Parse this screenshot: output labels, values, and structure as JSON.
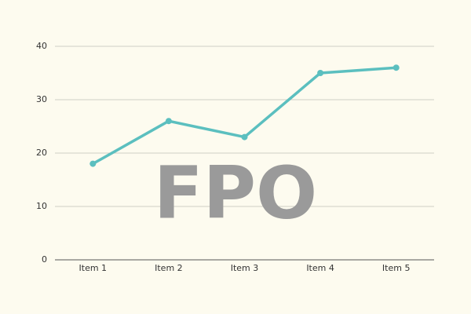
{
  "chart_data": {
    "type": "line",
    "categories": [
      "Item 1",
      "Item 2",
      "Item 3",
      "Item 4",
      "Item 5"
    ],
    "values": [
      18,
      26,
      23,
      35,
      36
    ],
    "color": "#5bbfbf",
    "ylim": [
      0,
      40
    ],
    "yticks": [
      0,
      10,
      20,
      30,
      40
    ],
    "grid": true,
    "watermark": "FPO"
  }
}
